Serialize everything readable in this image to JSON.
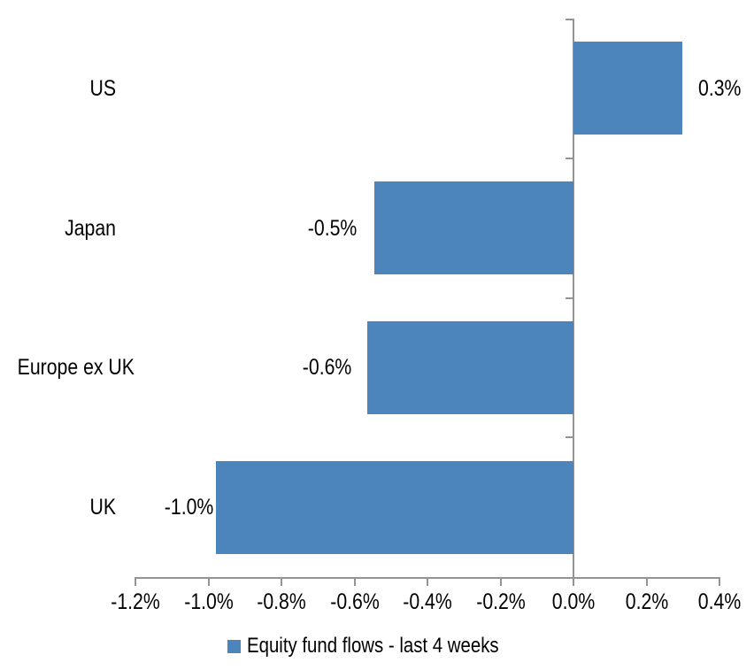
{
  "chart_data": {
    "type": "bar",
    "orientation": "horizontal",
    "title": "",
    "xlabel": "",
    "ylabel": "",
    "categories": [
      "US",
      "Japan",
      "Europe ex UK",
      "UK"
    ],
    "values": [
      0.3,
      -0.5,
      -0.6,
      -1.0
    ],
    "data_labels": [
      "0.3%",
      "-0.5%",
      "-0.6%",
      "-1.0%"
    ],
    "plotted_values": [
      0.298,
      -0.545,
      -0.565,
      -0.98
    ],
    "series_name": "Equity fund flows - last 4 weeks",
    "xlim": [
      -1.2,
      0.4
    ],
    "x_tick_step": 0.2,
    "x_tick_labels": [
      "-1.2%",
      "-1.0%",
      "-0.8%",
      "-0.6%",
      "-0.4%",
      "-0.2%",
      "0.0%",
      "0.2%",
      "0.4%"
    ],
    "grid": false,
    "legend_position": "bottom",
    "bar_color": "#4C85BC",
    "axis_color": "#949494",
    "text_color": "#000000",
    "background_color": "#FFFFFF"
  },
  "legend": {
    "label": "Equity fund flows - last 4 weeks"
  }
}
